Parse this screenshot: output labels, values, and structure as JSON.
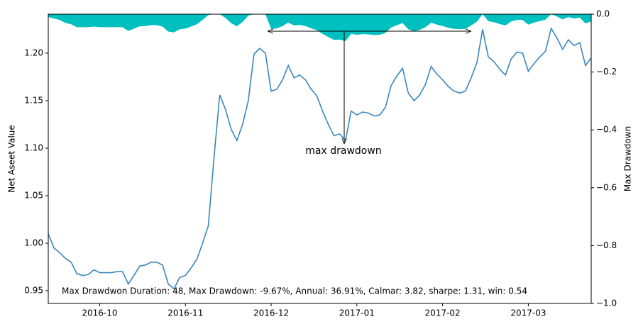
{
  "chart_data": {
    "type": "line",
    "ylabel": "Net Aseet Value",
    "y2label": "Max Drawdown",
    "categories": [
      null,
      null,
      null,
      null,
      null,
      null,
      null,
      null,
      null,
      "2016-10",
      null,
      null,
      null,
      null,
      null,
      null,
      null,
      null,
      null,
      null,
      null,
      null,
      null,
      null,
      "2016-11",
      null,
      null,
      null,
      null,
      null,
      null,
      null,
      null,
      null,
      null,
      null,
      null,
      null,
      null,
      "2016-12",
      null,
      null,
      null,
      null,
      null,
      null,
      null,
      null,
      null,
      null,
      null,
      null,
      null,
      null,
      "2017-01",
      null,
      null,
      null,
      null,
      null,
      null,
      null,
      null,
      null,
      null,
      null,
      null,
      null,
      null,
      "2017-02",
      null,
      null,
      null,
      null,
      null,
      null,
      null,
      null,
      null,
      null,
      null,
      null,
      null,
      null,
      "2017-03",
      null,
      null,
      null,
      null,
      null,
      null,
      null,
      null,
      null,
      null,
      null
    ],
    "series": [
      {
        "color": "#3a87be",
        "values": [
          1.01,
          0.995,
          0.99,
          0.984,
          0.98,
          0.968,
          0.966,
          0.967,
          0.972,
          0.969,
          0.969,
          0.969,
          0.97,
          0.97,
          0.957,
          0.966,
          0.976,
          0.977,
          0.98,
          0.98,
          0.977,
          0.957,
          0.952,
          0.964,
          0.966,
          0.974,
          0.983,
          1.0,
          1.018,
          1.09,
          1.156,
          1.141,
          1.12,
          1.108,
          1.125,
          1.15,
          1.199,
          1.205,
          1.2,
          1.16,
          1.162,
          1.172,
          1.187,
          1.174,
          1.177,
          1.172,
          1.162,
          1.155,
          1.139,
          1.125,
          1.113,
          1.115,
          1.108,
          1.139,
          1.135,
          1.138,
          1.137,
          1.134,
          1.135,
          1.143,
          1.166,
          1.176,
          1.184,
          1.158,
          1.15,
          1.156,
          1.167,
          1.186,
          1.178,
          1.172,
          1.165,
          1.16,
          1.158,
          1.16,
          1.174,
          1.19,
          1.225,
          1.196,
          1.191,
          1.183,
          1.177,
          1.194,
          1.201,
          1.2,
          1.181,
          1.189,
          1.196,
          1.202,
          1.226,
          1.216,
          1.204,
          1.214,
          1.208,
          1.211,
          1.187,
          1.195
        ]
      },
      {
        "color": "#00bfbf",
        "type": "area",
        "axis": "y2",
        "values": [
          -0.01,
          -0.015,
          -0.02,
          -0.03,
          -0.035,
          -0.045,
          -0.045,
          -0.045,
          -0.043,
          -0.045,
          -0.045,
          -0.045,
          -0.045,
          -0.045,
          -0.058,
          -0.05,
          -0.042,
          -0.041,
          -0.038,
          -0.038,
          -0.043,
          -0.06,
          -0.063,
          -0.052,
          -0.05,
          -0.043,
          -0.035,
          -0.02,
          -0.003,
          0,
          0,
          -0.013,
          -0.031,
          -0.042,
          -0.027,
          -0.005,
          0,
          0,
          0,
          -0.051,
          -0.049,
          -0.041,
          -0.029,
          -0.039,
          -0.037,
          -0.041,
          -0.049,
          -0.055,
          -0.068,
          -0.079,
          -0.089,
          -0.088,
          -0.093,
          -0.068,
          -0.071,
          -0.069,
          -0.07,
          -0.072,
          -0.071,
          -0.065,
          -0.046,
          -0.038,
          -0.031,
          -0.052,
          -0.059,
          -0.054,
          -0.045,
          -0.029,
          -0.036,
          -0.041,
          -0.047,
          -0.051,
          -0.052,
          -0.051,
          -0.039,
          -0.026,
          0,
          -0.024,
          -0.028,
          -0.034,
          -0.039,
          -0.025,
          -0.02,
          -0.02,
          -0.036,
          -0.029,
          -0.024,
          -0.019,
          0,
          -0.008,
          -0.018,
          -0.01,
          -0.015,
          -0.012,
          -0.032,
          -0.025
        ]
      }
    ],
    "ylim": [
      0.9366,
      1.241
    ],
    "yticks": [
      0.95,
      {
        "value": 1.0,
        "label": "1.00"
      },
      1.05,
      {
        "value": 1.1,
        "label": "1.10"
      },
      1.15,
      {
        "value": 1.2,
        "label": "1.20"
      }
    ],
    "y2lim": [
      -1.0,
      0.0
    ],
    "y2ticks": [
      {
        "value": -1.0,
        "label": "−1.0"
      },
      {
        "value": -0.8,
        "label": "−0.8"
      },
      {
        "value": -0.6,
        "label": "−0.6"
      },
      {
        "value": -0.4,
        "label": "−0.4"
      },
      {
        "value": -0.2,
        "label": "−0.2"
      },
      {
        "value": 0.0,
        "label": "0.0"
      }
    ],
    "annotations": [
      "max drawdown",
      "Max Drawdwon Duration: 48, Max Drawdown: -9.67%, Annual: 36.91%, Calmar: 3.82, sharpe: 1.31, win: 0.54"
    ]
  }
}
